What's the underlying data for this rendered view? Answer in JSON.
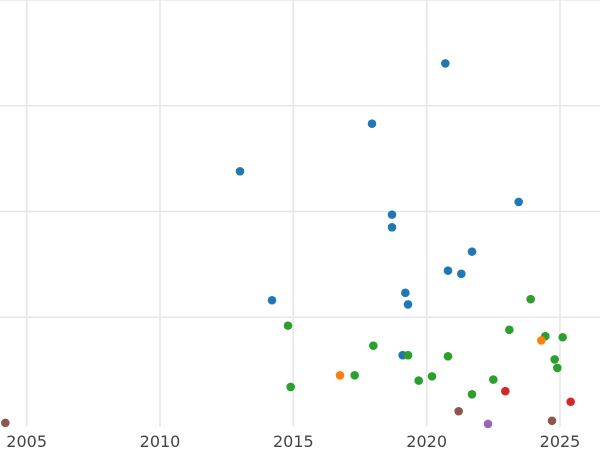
{
  "chart_data": {
    "type": "scatter",
    "title": "",
    "xlabel": "",
    "ylabel": "",
    "xlim": [
      2004.0,
      2026.5
    ],
    "ylim": [
      -0.02,
      4.0
    ],
    "x_ticks": [
      2005,
      2010,
      2015,
      2020,
      2025
    ],
    "x_tick_labels": [
      "2005",
      "2010",
      "2015",
      "2020",
      "2025"
    ],
    "y_gridlines": [
      1,
      2,
      3,
      4
    ],
    "grid": true,
    "legend": "none",
    "series": [
      {
        "color": "#1f77b4",
        "points": [
          {
            "x": 2013.0,
            "y": 2.38
          },
          {
            "x": 2014.2,
            "y": 1.16
          },
          {
            "x": 2017.95,
            "y": 2.83
          },
          {
            "x": 2018.7,
            "y": 1.97
          },
          {
            "x": 2018.7,
            "y": 1.85
          },
          {
            "x": 2019.2,
            "y": 1.23
          },
          {
            "x": 2019.3,
            "y": 1.12
          },
          {
            "x": 2019.1,
            "y": 0.64
          },
          {
            "x": 2020.7,
            "y": 3.4
          },
          {
            "x": 2020.8,
            "y": 1.44
          },
          {
            "x": 2021.3,
            "y": 1.41
          },
          {
            "x": 2021.7,
            "y": 1.62
          },
          {
            "x": 2023.45,
            "y": 2.09
          }
        ]
      },
      {
        "color": "#2ca02c",
        "points": [
          {
            "x": 2014.8,
            "y": 0.92
          },
          {
            "x": 2014.9,
            "y": 0.34
          },
          {
            "x": 2017.3,
            "y": 0.45
          },
          {
            "x": 2018.0,
            "y": 0.73
          },
          {
            "x": 2019.3,
            "y": 0.64
          },
          {
            "x": 2019.7,
            "y": 0.4
          },
          {
            "x": 2020.2,
            "y": 0.44
          },
          {
            "x": 2020.8,
            "y": 0.63
          },
          {
            "x": 2021.7,
            "y": 0.27
          },
          {
            "x": 2022.5,
            "y": 0.41
          },
          {
            "x": 2023.1,
            "y": 0.88
          },
          {
            "x": 2023.9,
            "y": 1.17
          },
          {
            "x": 2024.45,
            "y": 0.82
          },
          {
            "x": 2024.8,
            "y": 0.6
          },
          {
            "x": 2024.9,
            "y": 0.52
          },
          {
            "x": 2025.1,
            "y": 0.81
          }
        ]
      },
      {
        "color": "#ff7f0e",
        "points": [
          {
            "x": 2016.75,
            "y": 0.45
          },
          {
            "x": 2024.3,
            "y": 0.78
          }
        ]
      },
      {
        "color": "#d62728",
        "points": [
          {
            "x": 2022.95,
            "y": 0.3
          },
          {
            "x": 2025.4,
            "y": 0.2
          }
        ]
      },
      {
        "color": "#8c564b",
        "points": [
          {
            "x": 2004.2,
            "y": 0.0
          },
          {
            "x": 2021.2,
            "y": 0.11
          },
          {
            "x": 2024.7,
            "y": 0.02
          }
        ]
      },
      {
        "color": "#9467bd",
        "points": [
          {
            "x": 2022.3,
            "y": -0.01
          }
        ]
      }
    ]
  }
}
